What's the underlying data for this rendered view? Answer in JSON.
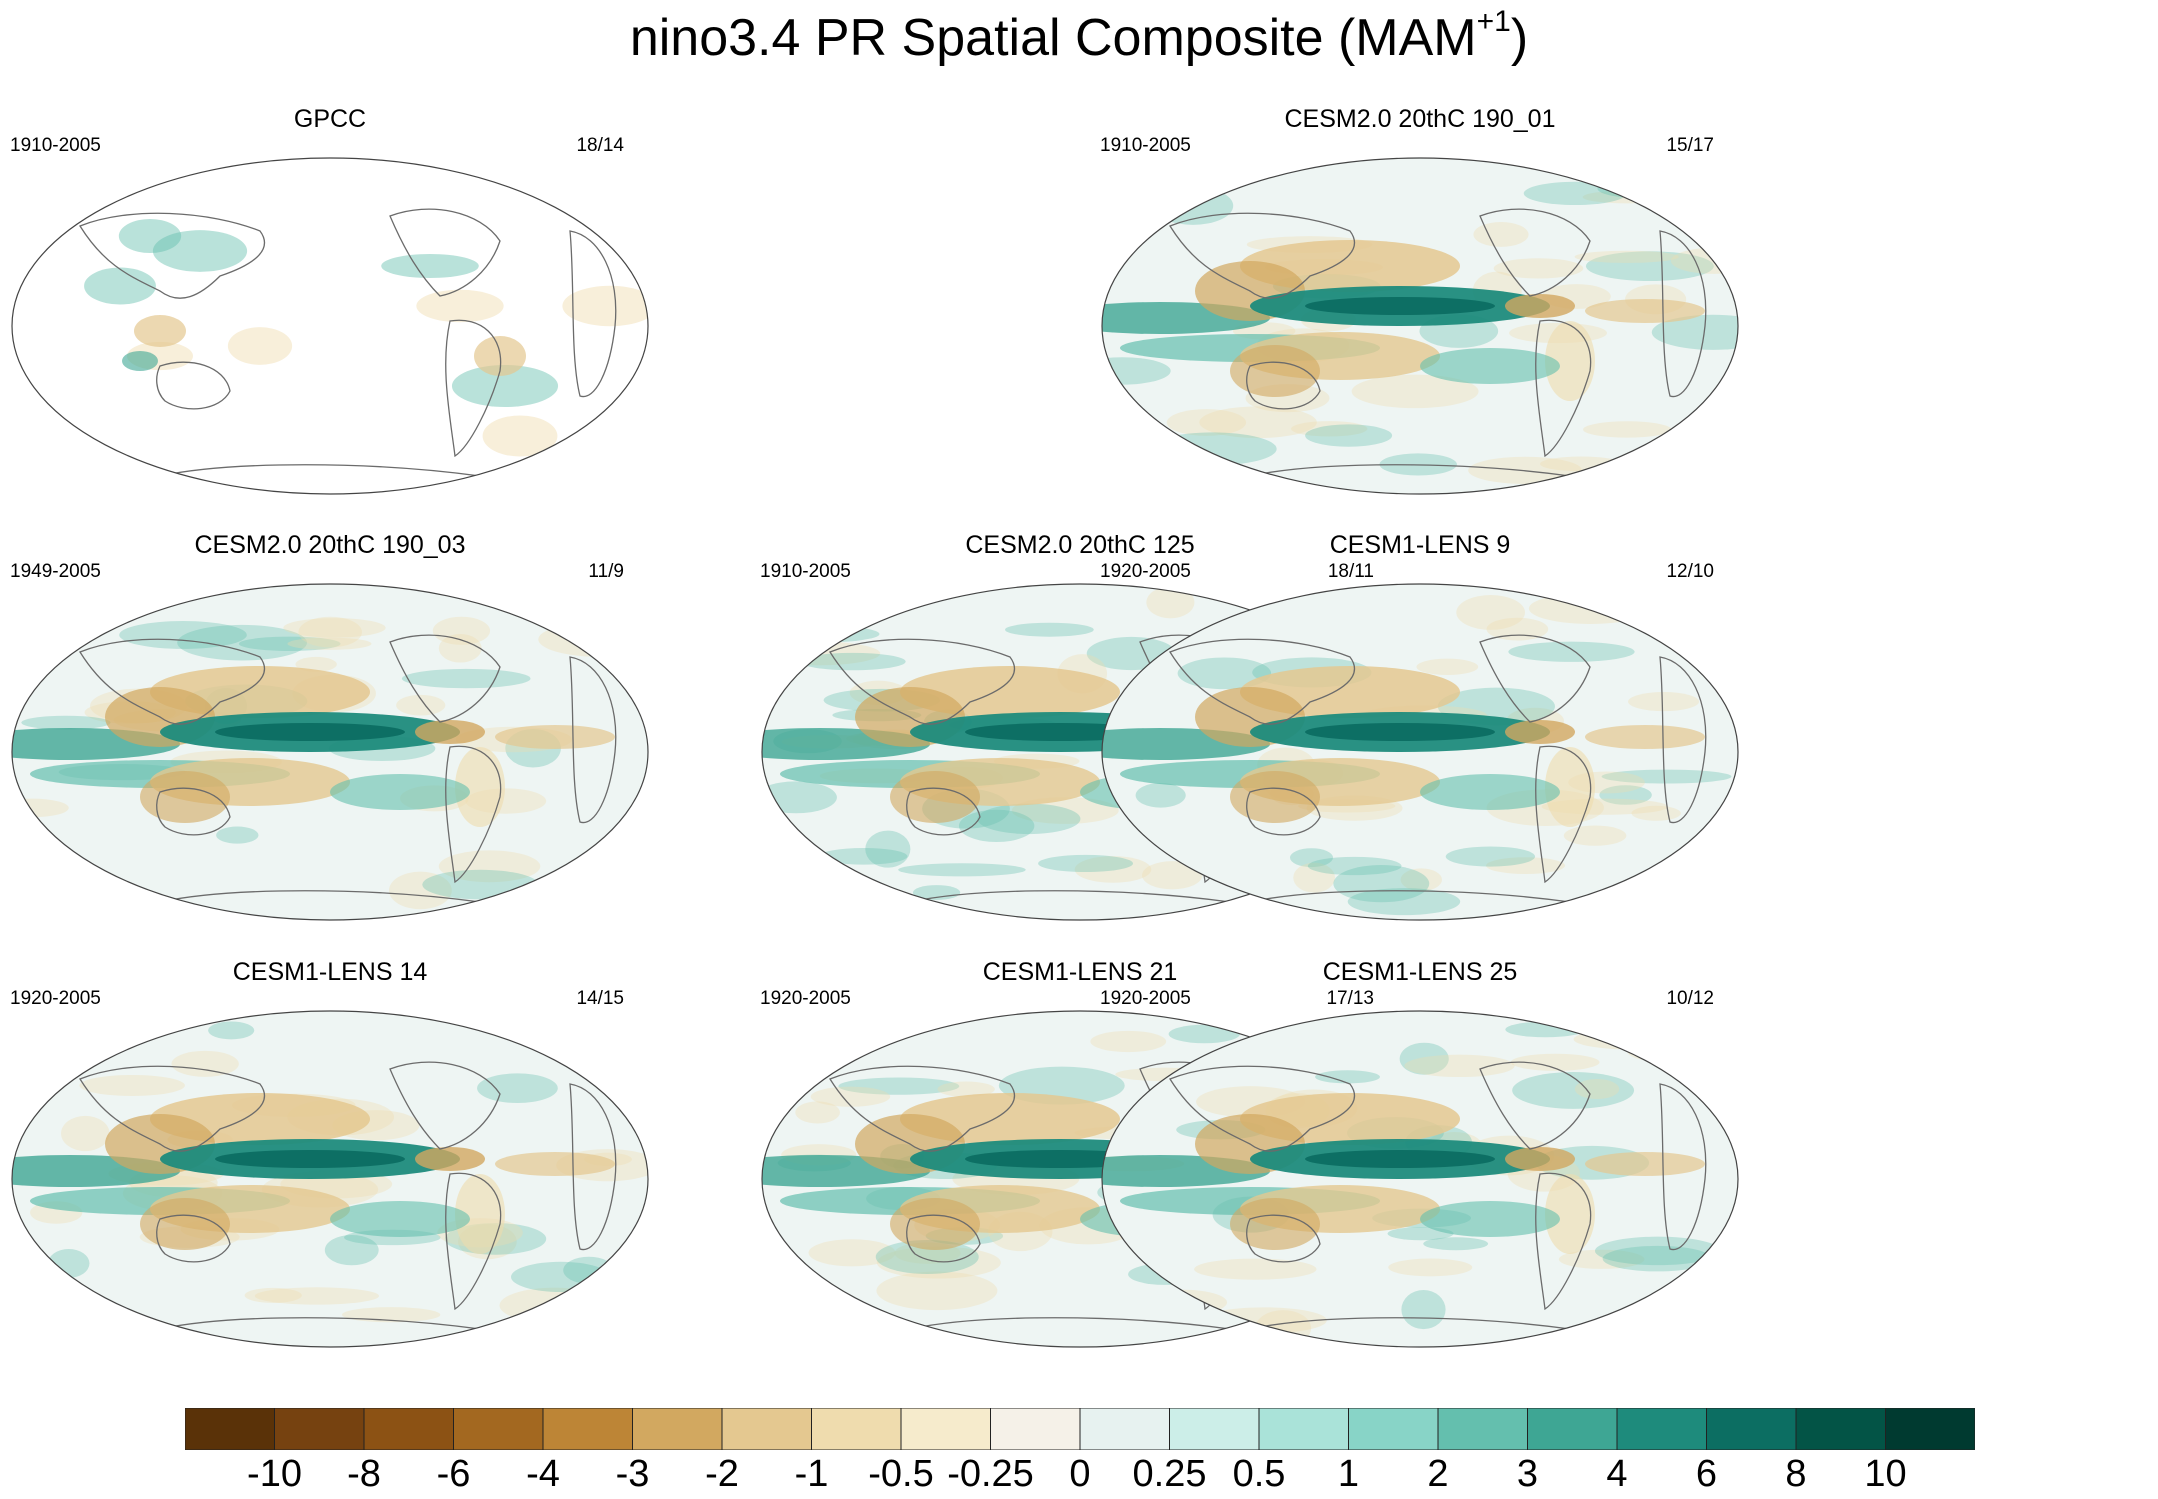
{
  "figure": {
    "title_main": "nino3.4 PR Spatial Composite (MAM",
    "title_sup": "+1",
    "title_end": ")"
  },
  "panels": [
    {
      "title": "GPCC",
      "period": "1910-2005",
      "count": "18/14",
      "style": "obs"
    },
    {
      "title": "CESM2.0 20thC 190_01",
      "period": "1910-2005",
      "count": "15/17",
      "style": "model"
    },
    {
      "title": "CESM2.0 20thC 190_03",
      "period": "1949-2005",
      "count": "11/9",
      "style": "model"
    },
    {
      "title": "CESM2.0 20thC 125",
      "period": "1910-2005",
      "count": "18/11",
      "style": "model"
    },
    {
      "title": "CESM1-LENS 9",
      "period": "1920-2005",
      "count": "12/10",
      "style": "model"
    },
    {
      "title": "CESM1-LENS 14",
      "period": "1920-2005",
      "count": "14/15",
      "style": "model"
    },
    {
      "title": "CESM1-LENS 21",
      "period": "1920-2005",
      "count": "17/13",
      "style": "model"
    },
    {
      "title": "CESM1-LENS 25",
      "period": "1920-2005",
      "count": "10/12",
      "style": "model"
    }
  ],
  "colorbar": {
    "colors": [
      "#5a3208",
      "#764210",
      "#8c5214",
      "#a36820",
      "#bd8536",
      "#d2a860",
      "#e4c890",
      "#efdcae",
      "#f6ebcc",
      "#f5f1e8",
      "#e7f2f0",
      "#cceee8",
      "#aae3d9",
      "#88d4c7",
      "#64bfae",
      "#3ea694",
      "#1e8b7c",
      "#0c6e62",
      "#035446",
      "#003a30"
    ],
    "labels": [
      "-10",
      "-8",
      "-6",
      "-4",
      "-3",
      "-2",
      "-1",
      "-0.5",
      "-0.25",
      "0",
      "0.25",
      "0.5",
      "1",
      "2",
      "3",
      "4",
      "6",
      "8",
      "10"
    ]
  }
}
